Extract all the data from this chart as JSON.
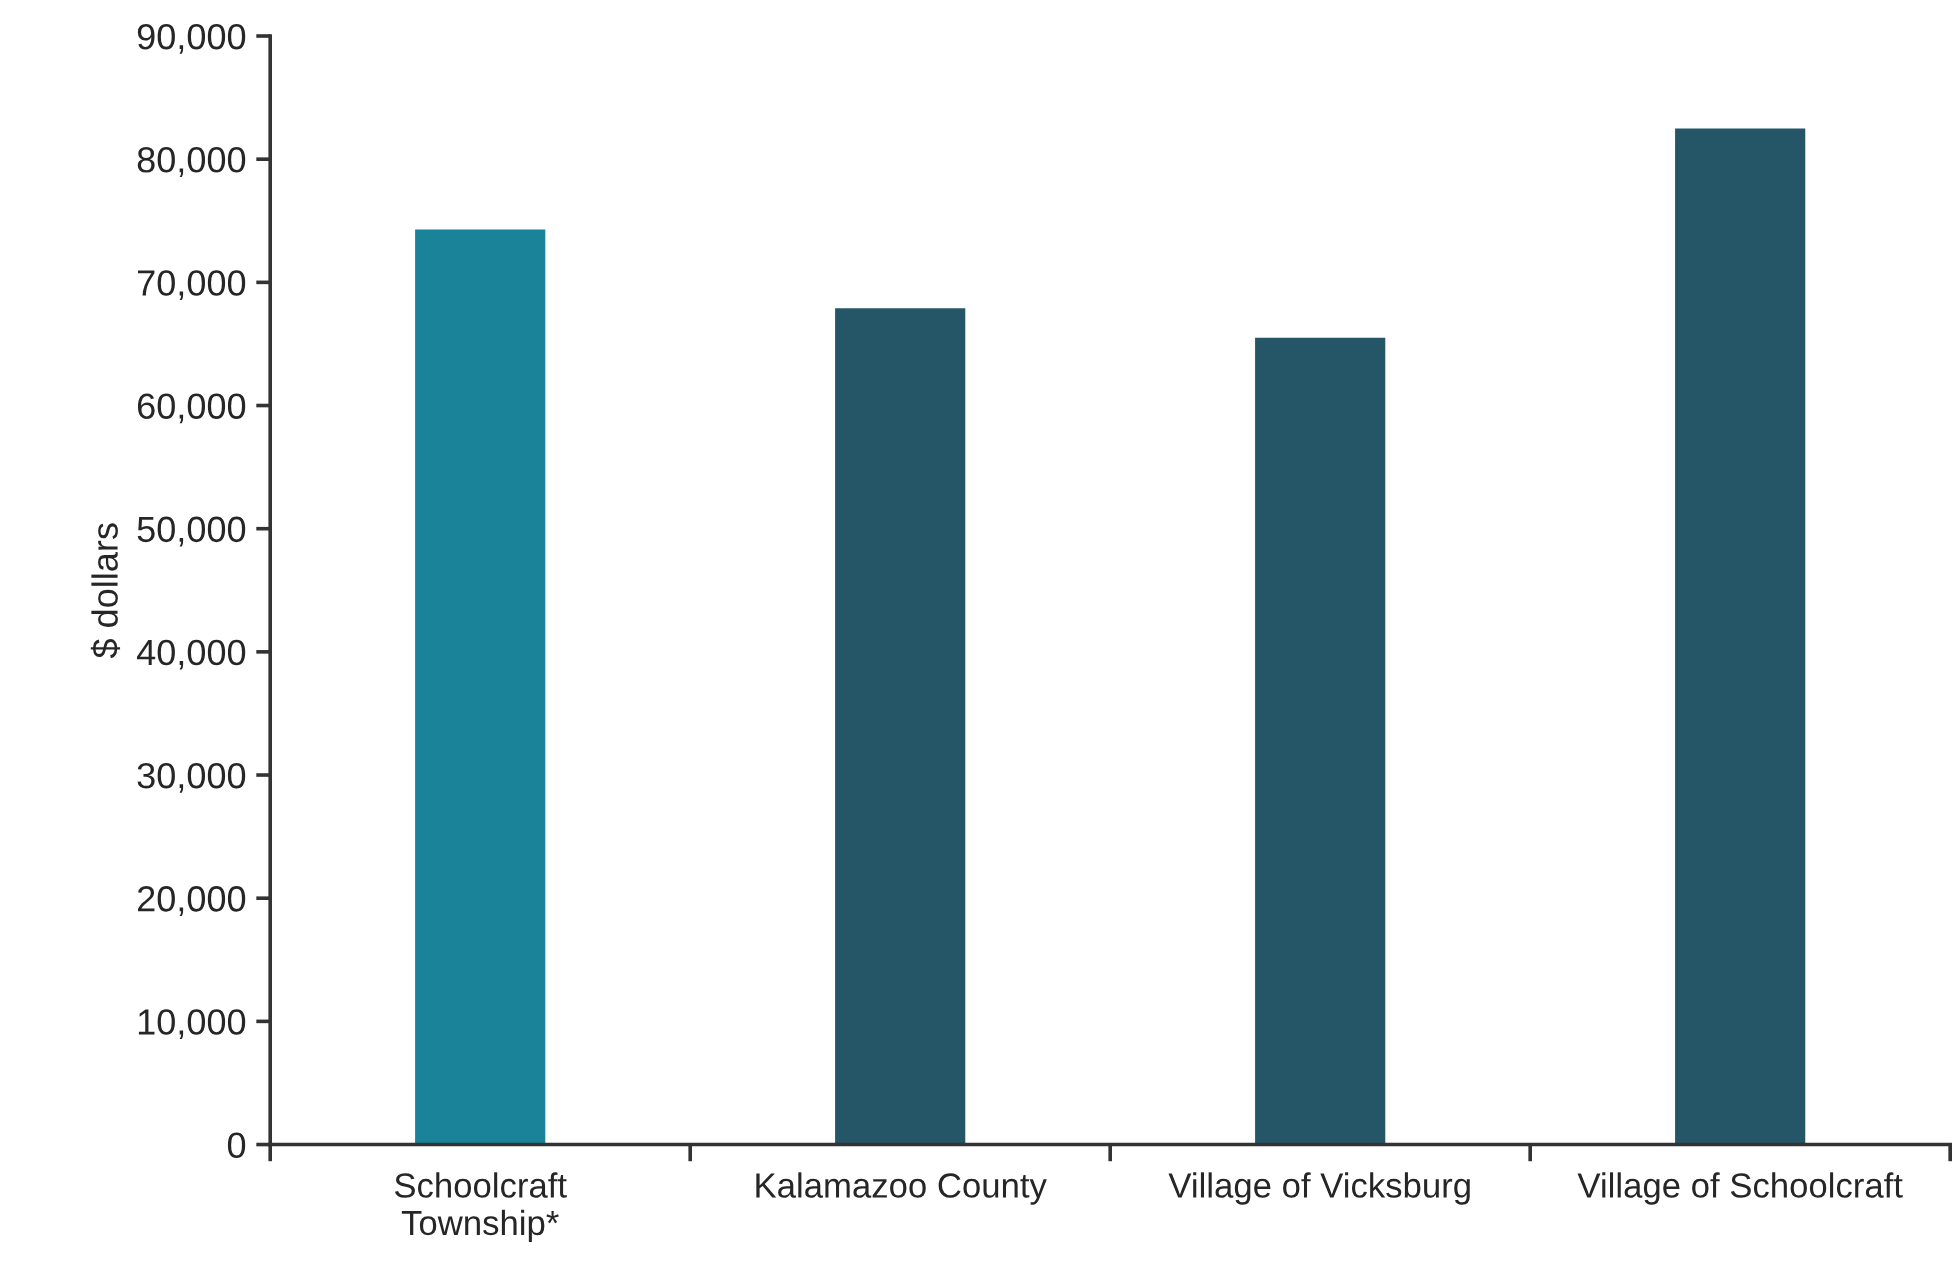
{
  "chart_data": {
    "type": "bar",
    "ylabel": "$ dollars",
    "categories": [
      "Schoolcraft\nTownship*",
      "Kalamazoo County",
      "Village of Vicksburg",
      "Village of Schoolcraft"
    ],
    "values": [
      74300,
      67900,
      65500,
      82500
    ],
    "colors": [
      "#1a8299",
      "#255668",
      "#255668",
      "#255668"
    ],
    "ylim": [
      0,
      90000
    ],
    "yticks": [
      {
        "value": 0,
        "label": "0"
      },
      {
        "value": 10000,
        "label": "10,000"
      },
      {
        "value": 20000,
        "label": "20,000"
      },
      {
        "value": 30000,
        "label": "30,000"
      },
      {
        "value": 40000,
        "label": "40,000"
      },
      {
        "value": 50000,
        "label": "50,000"
      },
      {
        "value": 60000,
        "label": "60,000"
      },
      {
        "value": 70000,
        "label": "70,000"
      },
      {
        "value": 80000,
        "label": "80,000"
      },
      {
        "value": 90000,
        "label": "90,000"
      }
    ],
    "grid": false,
    "legend": false
  }
}
